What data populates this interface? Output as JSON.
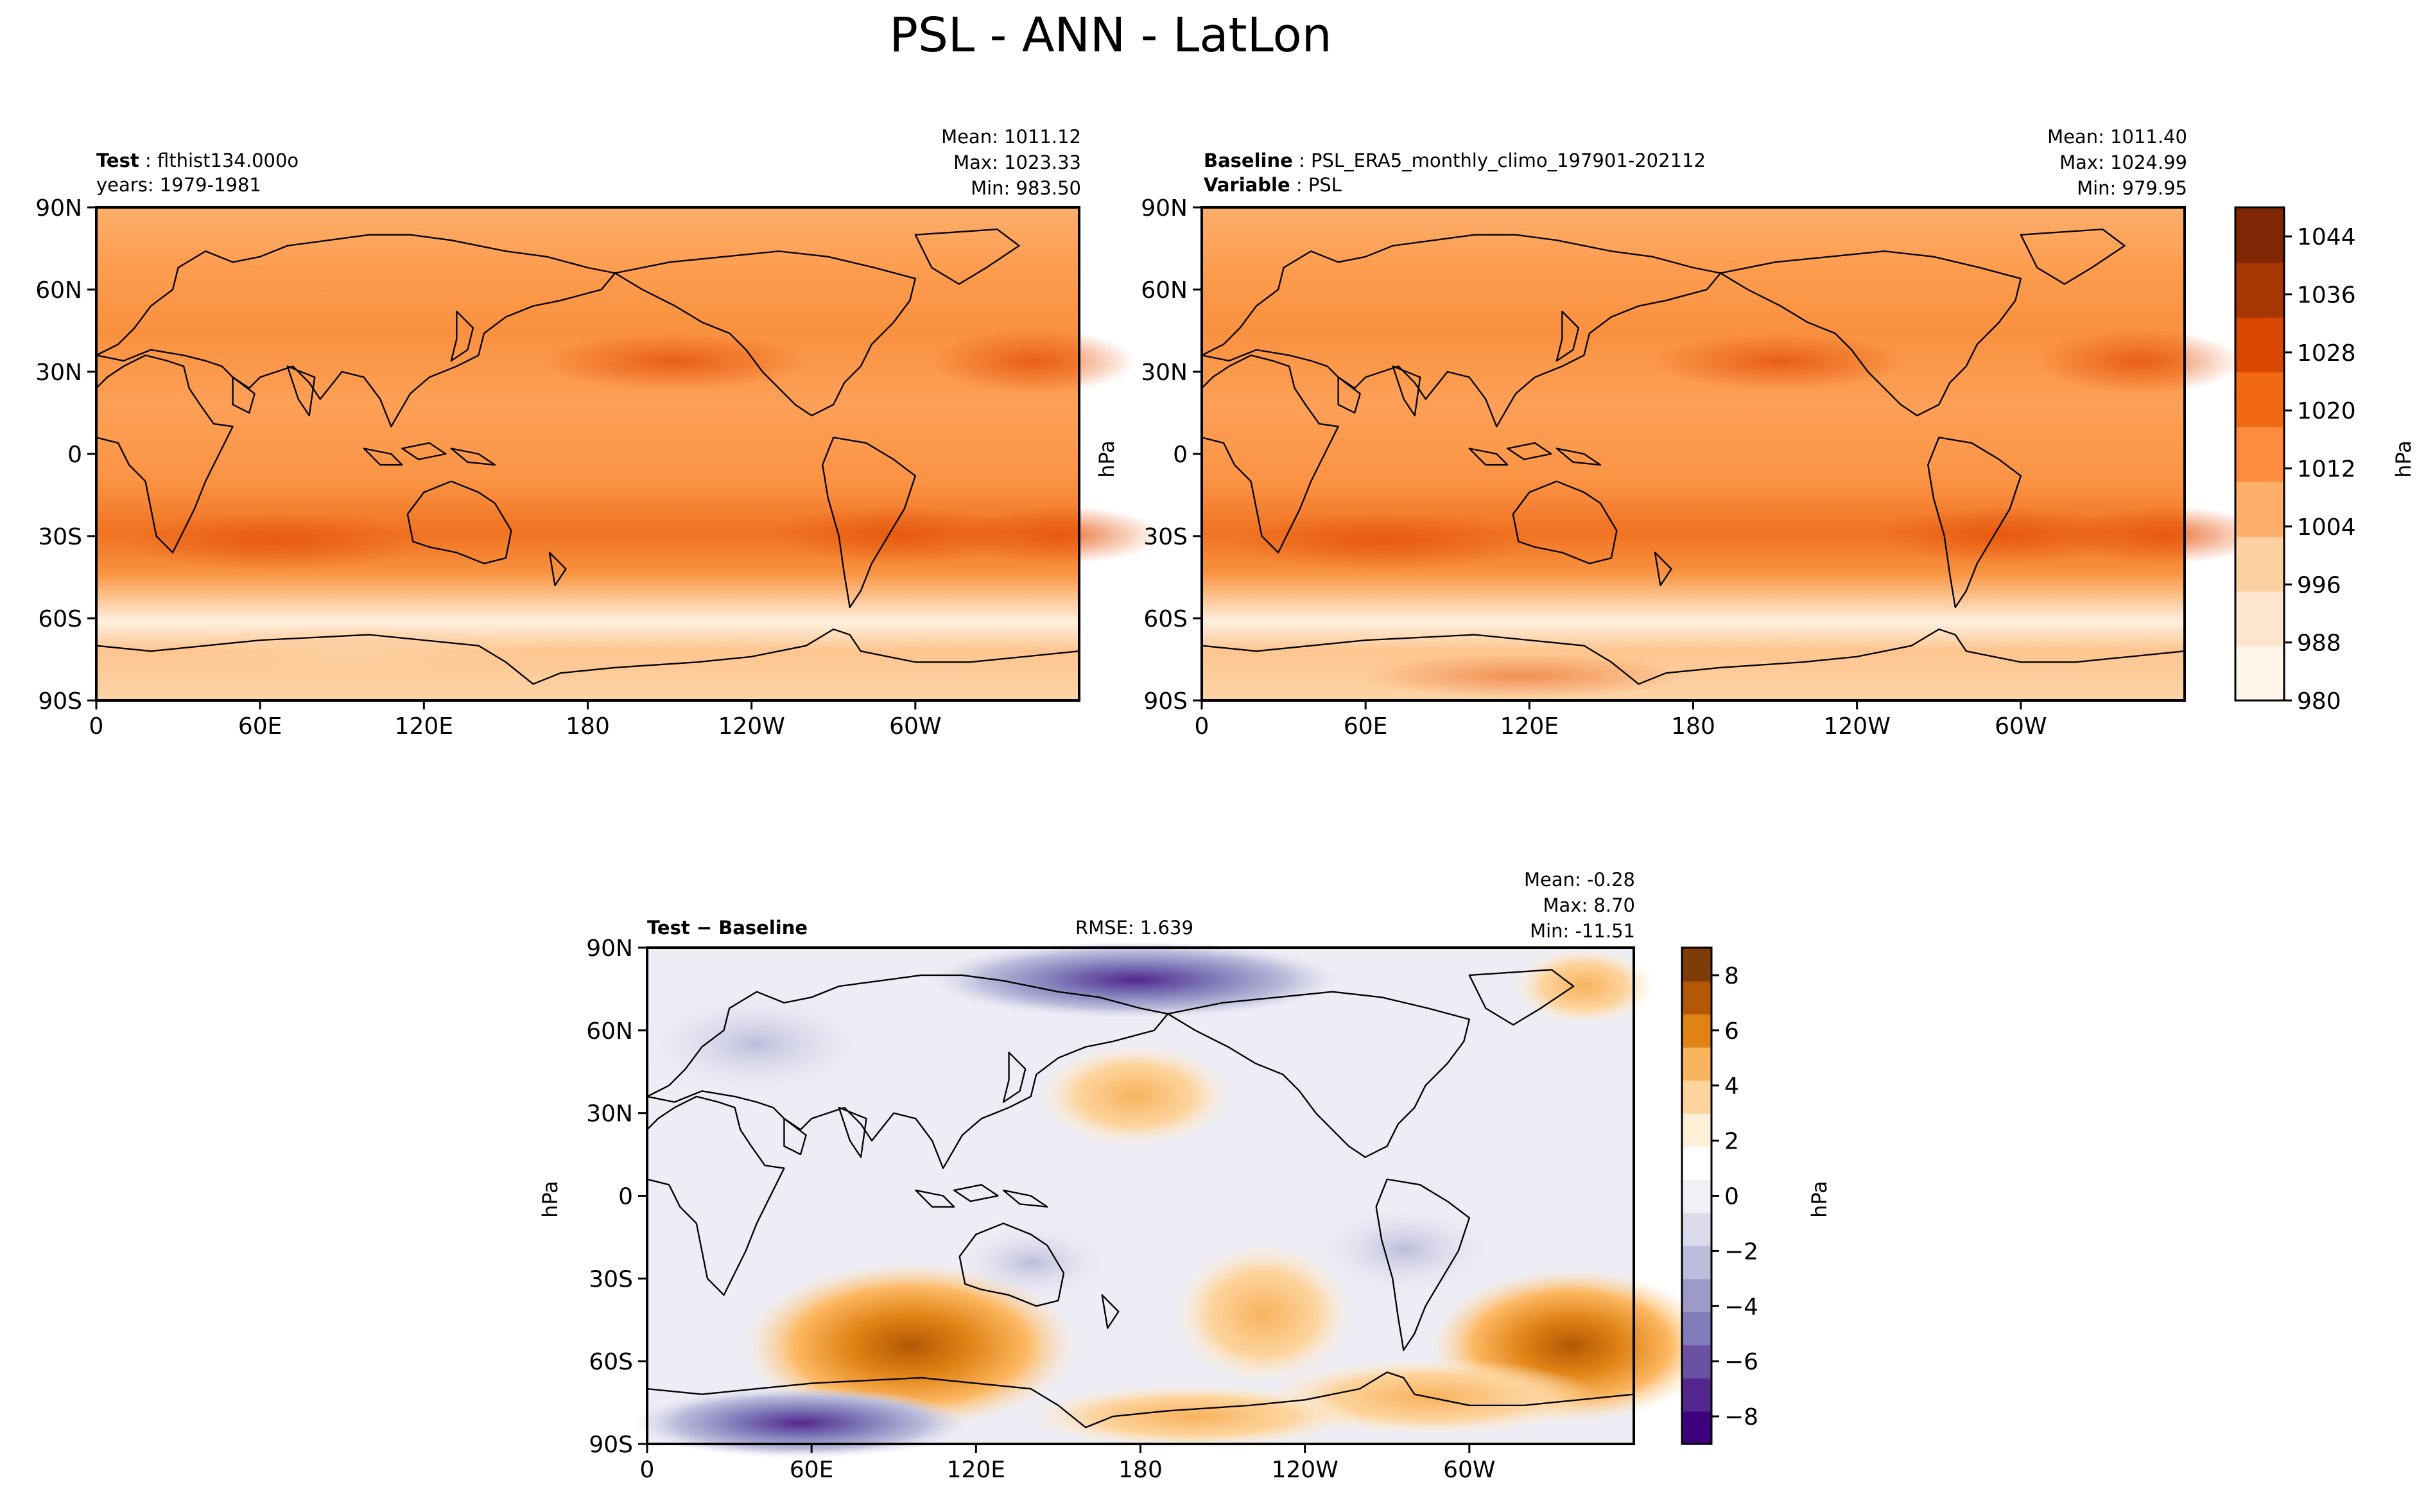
{
  "title": "PSL - ANN - LatLon",
  "colors": {
    "orange_ramp": [
      "#fff5eb",
      "#fee6ce",
      "#fdd0a2",
      "#fdae6b",
      "#fd8d3c",
      "#f16913",
      "#d94801",
      "#a63603",
      "#7f2704"
    ],
    "diff_ramp": [
      "#3f007d",
      "#54278f",
      "#6a51a3",
      "#807dba",
      "#9e9ac8",
      "#bcbddc",
      "#dadaeb",
      "#f2f0f7",
      "#ffffff",
      "#fff0d8",
      "#fdd49e",
      "#f8b35d",
      "#e08214",
      "#b35806",
      "#7f3b08"
    ],
    "coastline": "#000000"
  },
  "panels": {
    "test": {
      "label_key": "Test",
      "label_value": "flthist134.000o",
      "line2": "years: 1979-1981",
      "stats": {
        "mean": "Mean: 1011.12",
        "max": "Max: 1023.33",
        "min": "Min: 983.50"
      }
    },
    "baseline": {
      "label_key": "Baseline",
      "label_value": "PSL_ERA5_monthly_climo_197901-202112",
      "line2_key": "Variable",
      "line2_value": "PSL",
      "stats": {
        "mean": "Mean: 1011.40",
        "max": "Max: 1024.99",
        "min": "Min: 979.95"
      },
      "ylabel": "hPa"
    },
    "diff": {
      "label": "Test − Baseline",
      "rmse": "RMSE: 1.639",
      "stats": {
        "mean": "Mean: -0.28",
        "max": "Max:  8.70",
        "min": "Min: -11.51"
      },
      "ylabel": "hPa"
    }
  },
  "chart_data": [
    {
      "type": "heatmap",
      "name": "Test PSL annual mean (lat-lon map)",
      "x_ticks": [
        "0",
        "60E",
        "120E",
        "180",
        "120W",
        "60W"
      ],
      "y_ticks": [
        "90N",
        "60N",
        "30N",
        "0",
        "30S",
        "60S",
        "90S"
      ],
      "xlim": [
        0,
        360
      ],
      "ylim": [
        -90,
        90
      ],
      "colorbar": {
        "label": "hPa",
        "ticks": [
          980,
          988,
          996,
          1004,
          1012,
          1020,
          1028,
          1036,
          1044
        ],
        "range": [
          980,
          1048
        ]
      }
    },
    {
      "type": "heatmap",
      "name": "Baseline PSL annual mean (ERA5)",
      "x_ticks": [
        "0",
        "60E",
        "120E",
        "180",
        "120W",
        "60W"
      ],
      "y_ticks": [
        "90N",
        "60N",
        "30N",
        "0",
        "30S",
        "60S",
        "90S"
      ],
      "xlim": [
        0,
        360
      ],
      "ylim": [
        -90,
        90
      ]
    },
    {
      "type": "heatmap",
      "name": "Test - Baseline difference",
      "x_ticks": [
        "0",
        "60E",
        "120E",
        "180",
        "120W",
        "60W"
      ],
      "y_ticks": [
        "90N",
        "60N",
        "30N",
        "0",
        "30S",
        "60S",
        "90S"
      ],
      "xlim": [
        0,
        360
      ],
      "ylim": [
        -90,
        90
      ],
      "colorbar": {
        "label": "hPa",
        "ticks": [
          8,
          6,
          4,
          2,
          0,
          -2,
          -4,
          -6,
          -8
        ],
        "range": [
          -9,
          9
        ]
      }
    }
  ]
}
